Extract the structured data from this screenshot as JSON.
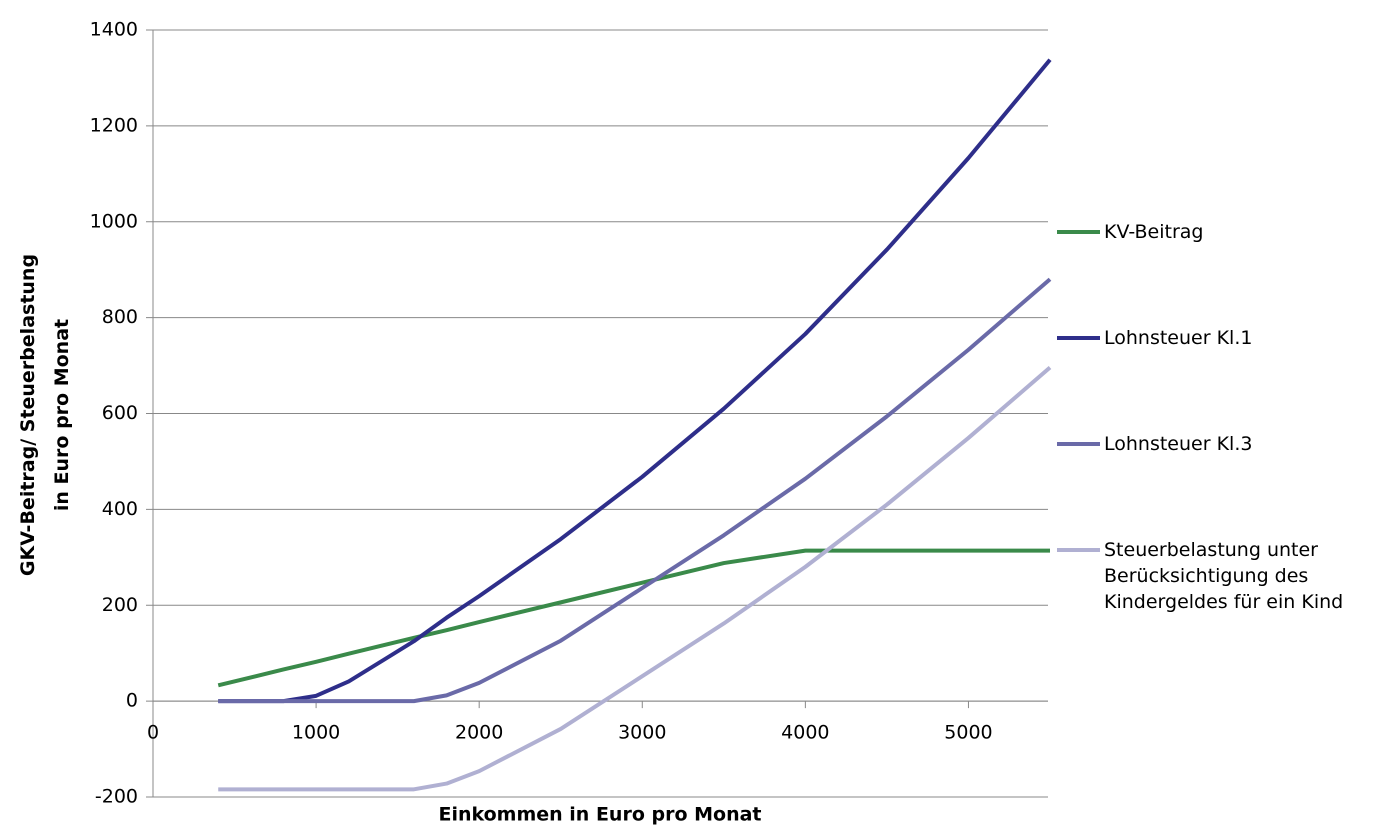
{
  "chart_data": {
    "type": "line",
    "xlabel": "Einkommen in Euro pro Monat",
    "ylabel": "GKV-Beitrag/ Steuerbelastung\nin Euro pro Monat",
    "x": [
      400,
      800,
      1000,
      1200,
      1600,
      1800,
      2000,
      2500,
      3000,
      3500,
      4000,
      4500,
      5000,
      5500
    ],
    "series": [
      {
        "name": "KV-Beitrag",
        "color": "#3a8a4a",
        "values": [
          33,
          66,
          82,
          99,
          132,
          148,
          165,
          206,
          247,
          288,
          314,
          314,
          314,
          314
        ]
      },
      {
        "name": "Lohnsteuer Kl.1",
        "color": "#2e2e8a",
        "values": [
          0,
          0,
          11,
          41,
          125,
          174,
          219,
          338,
          468,
          610,
          766,
          942,
          1133,
          1338
        ]
      },
      {
        "name": "Lohnsteuer Kl.3",
        "color": "#6a6aa8",
        "values": [
          0,
          0,
          0,
          0,
          0,
          12,
          38,
          126,
          236,
          346,
          464,
          594,
          733,
          880
        ]
      },
      {
        "name": "Steuerbelastung unter\nBerücksichtigung des\nKindergeldes für ein Kind",
        "color": "#b0b0d2",
        "values": [
          -184,
          -184,
          -184,
          -184,
          -184,
          -172,
          -146,
          -58,
          52,
          162,
          280,
          410,
          549,
          696
        ]
      }
    ],
    "xlim": [
      0,
      5500
    ],
    "xticks": [
      0,
      1000,
      2000,
      3000,
      4000,
      5000
    ],
    "ylim": [
      -200,
      1400
    ],
    "yticks": [
      -200,
      0,
      200,
      400,
      600,
      800,
      1000,
      1200,
      1400
    ],
    "grid": true,
    "legend": "right"
  }
}
